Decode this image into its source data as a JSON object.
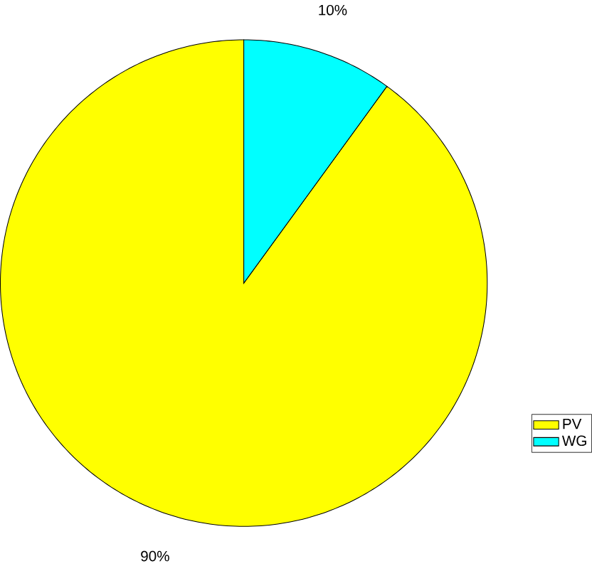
{
  "chart_data": {
    "type": "pie",
    "categories": [
      "PV",
      "WG"
    ],
    "values": [
      90,
      10
    ],
    "colors": [
      "#ffff00",
      "#00ffff"
    ],
    "value_labels": [
      "90%",
      "10%"
    ],
    "legend": "bottom right"
  }
}
